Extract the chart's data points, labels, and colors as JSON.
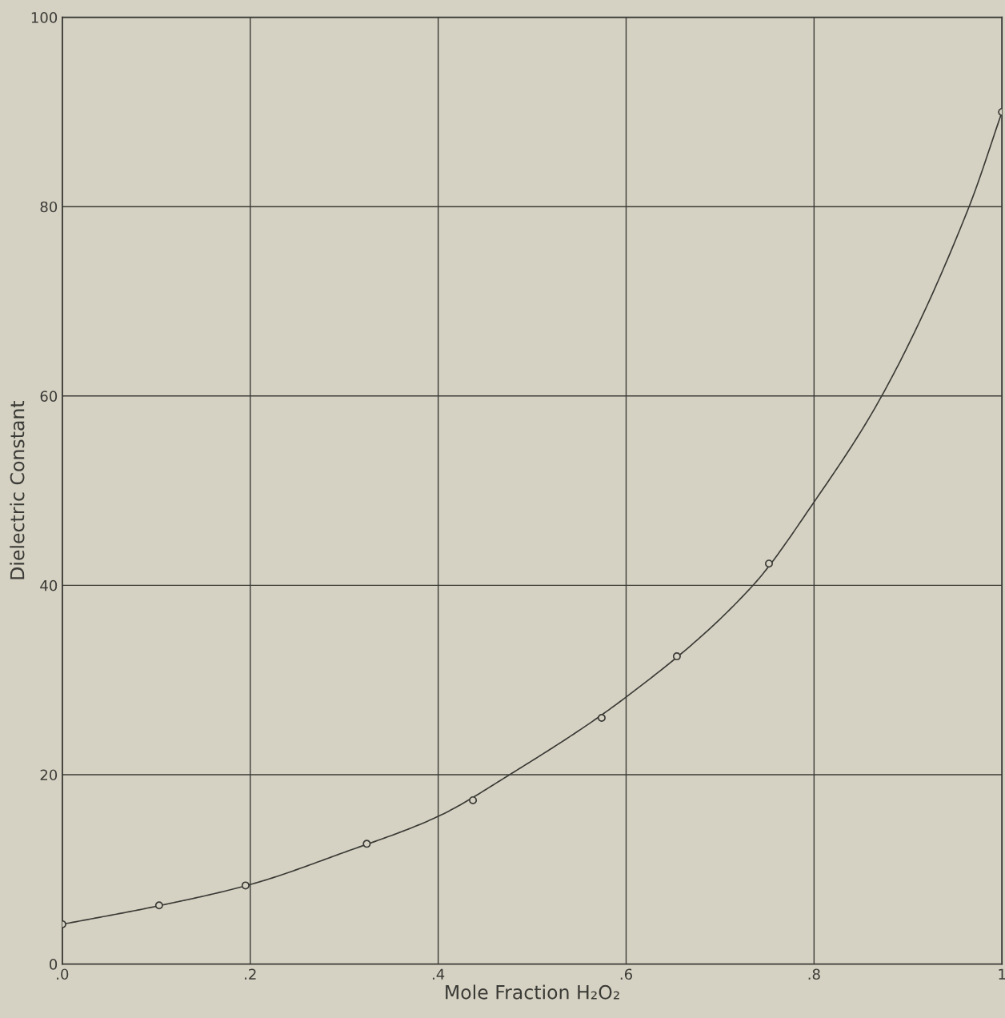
{
  "chart_data": {
    "type": "line",
    "xlabel": "Mole Fraction H₂O₂",
    "ylabel": "Dielectric Constant",
    "xlim": [
      0,
      1
    ],
    "ylim": [
      0,
      100
    ],
    "xticks": [
      {
        "value": 0,
        "label": ".0"
      },
      {
        "value": 0.2,
        "label": ".2"
      },
      {
        "value": 0.4,
        "label": ".4"
      },
      {
        "value": 0.6,
        "label": ".6"
      },
      {
        "value": 0.8,
        "label": ".8"
      },
      {
        "value": 1,
        "label": "1"
      }
    ],
    "yticks": [
      0,
      20,
      40,
      60,
      80,
      100
    ],
    "grid": true,
    "series": [
      {
        "color": "#3a3a36",
        "marker": "none",
        "x": [
          0,
          0.1,
          0.2,
          0.3,
          0.4,
          0.476,
          0.6,
          0.735,
          0.8,
          0.872,
          0.965,
          1.0
        ],
        "values": [
          4.2,
          6.1,
          8.4,
          11.8,
          15.6,
          20,
          28.2,
          40,
          48.8,
          60,
          80,
          90
        ]
      },
      {
        "type": "scatter",
        "color": "#3a3a36",
        "marker": "circle",
        "x": [
          0,
          0.103,
          0.195,
          0.324,
          0.437,
          0.574,
          0.654,
          0.752,
          1.0
        ],
        "values": [
          4.2,
          6.2,
          8.3,
          12.7,
          17.3,
          26.0,
          32.5,
          42.3,
          90.0
        ]
      }
    ]
  }
}
